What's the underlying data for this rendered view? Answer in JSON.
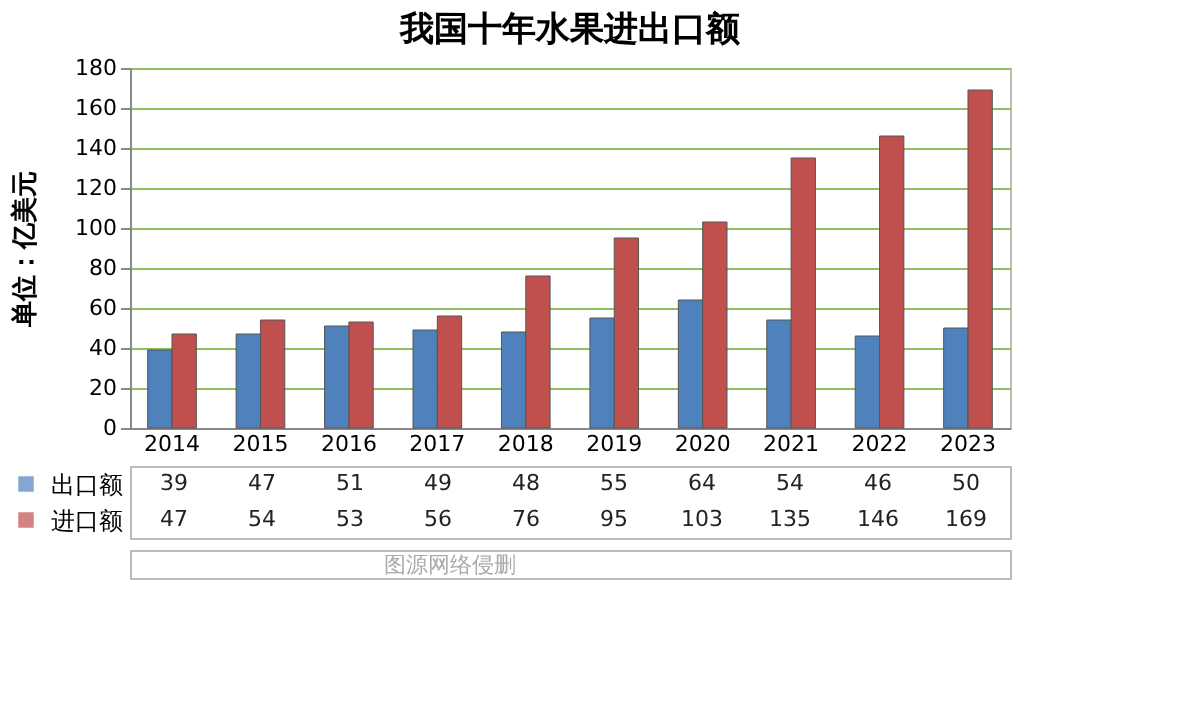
{
  "chart_data": {
    "type": "bar",
    "title": "我国十年水果进出口额",
    "ylabel": "单位：亿美元",
    "categories": [
      "2014",
      "2015",
      "2016",
      "2017",
      "2018",
      "2019",
      "2020",
      "2021",
      "2022",
      "2023"
    ],
    "series": [
      {
        "name": "出口额",
        "color": "#4f81bd",
        "values": [
          39,
          47,
          51,
          49,
          48,
          55,
          64,
          54,
          46,
          50
        ]
      },
      {
        "name": "进口额",
        "color": "#c0504d",
        "values": [
          47,
          54,
          53,
          56,
          76,
          95,
          103,
          135,
          146,
          169
        ]
      }
    ],
    "ylim": [
      0,
      180
    ],
    "yticks": [
      0,
      20,
      40,
      60,
      80,
      100,
      120,
      140,
      160,
      180
    ],
    "grid": "y",
    "legend": "bottom left",
    "data_labels": true,
    "annotations": [
      "图源网络侵删"
    ]
  }
}
